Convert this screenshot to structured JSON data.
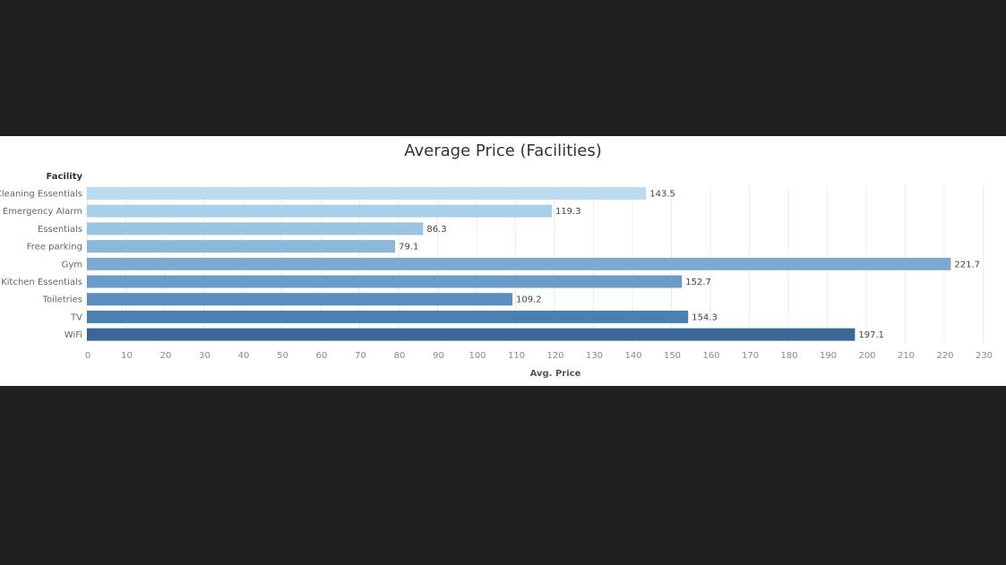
{
  "chart_data": {
    "type": "bar",
    "orientation": "horizontal",
    "title": "Average Price (Facilities)",
    "category_header": "Facility",
    "xlabel": "Avg. Price",
    "xlim": [
      0,
      230
    ],
    "xticks": [
      0,
      10,
      20,
      30,
      40,
      50,
      60,
      70,
      80,
      90,
      100,
      110,
      120,
      130,
      140,
      150,
      160,
      170,
      180,
      190,
      200,
      210,
      220,
      230
    ],
    "grid": true,
    "categories": [
      "Cleaning Essentials",
      "Emergency Alarm",
      "Essentials",
      "Free parking",
      "Gym",
      "Kitchen Essentials",
      "Toiletries",
      "TV",
      "WiFi"
    ],
    "values": [
      143.5,
      119.3,
      86.3,
      79.1,
      221.7,
      152.7,
      109.2,
      154.3,
      197.1
    ],
    "value_labels": [
      "143.5",
      "119.3",
      "86.3",
      "79.1",
      "221.7",
      "152.7",
      "109.2",
      "154.3",
      "197.1"
    ],
    "colors": [
      "#b9dcf0",
      "#a9d0ea",
      "#9ac4e2",
      "#8bb8da",
      "#7aaad1",
      "#699cc8",
      "#5a8ebe",
      "#4a7fb1",
      "#3a6796"
    ]
  }
}
